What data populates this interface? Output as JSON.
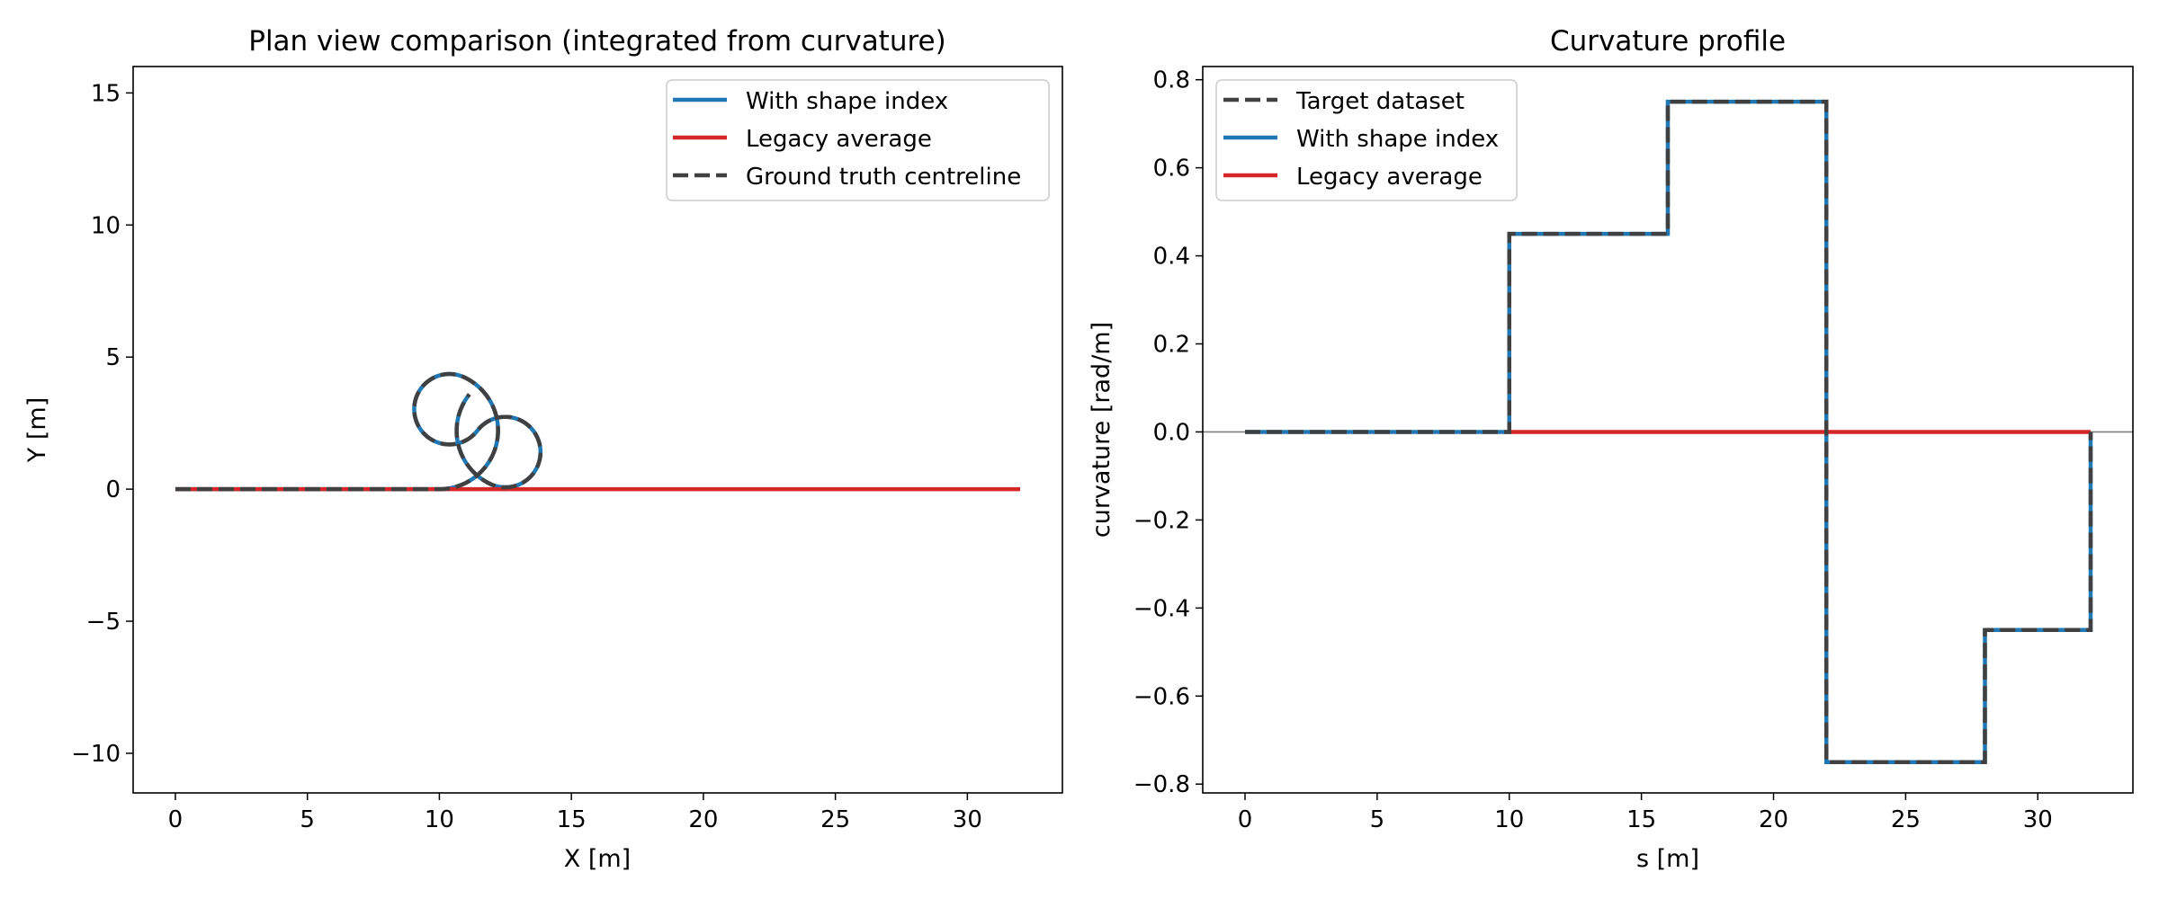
{
  "chart_data": [
    {
      "type": "line",
      "title": "Plan view comparison (integrated from curvature)",
      "xlabel": "X [m]",
      "ylabel": "Y [m]",
      "xlim": [
        -1.6,
        33.6
      ],
      "ylim": [
        -11.5,
        16.0
      ],
      "xticks": [
        0,
        5,
        10,
        15,
        20,
        25,
        30
      ],
      "yticks": [
        -10,
        -5,
        0,
        5,
        10,
        15
      ],
      "grid": false,
      "legend_position": "top-right",
      "curvature_segments": [
        {
          "s_start": 0,
          "s_end": 10,
          "k": 0.0
        },
        {
          "s_start": 10,
          "s_end": 16,
          "k": 0.45
        },
        {
          "s_start": 16,
          "s_end": 22,
          "k": 0.75
        },
        {
          "s_start": 22,
          "s_end": 28,
          "k": -0.75
        },
        {
          "s_start": 28,
          "s_end": 32,
          "k": -0.45
        }
      ],
      "series": [
        {
          "name": "With shape index",
          "color": "#1f77b4",
          "style": "solid",
          "path": "integrated",
          "end_point": [
            10.9,
            4.4
          ]
        },
        {
          "name": "Legacy average",
          "color": "#d62728",
          "style": "solid",
          "path": "straight",
          "x": [
            0,
            32
          ],
          "y": [
            0,
            0
          ]
        },
        {
          "name": "Ground truth centreline",
          "color": "#404040",
          "style": "dashed",
          "path": "integrated",
          "end_point": [
            10.9,
            4.4
          ]
        }
      ]
    },
    {
      "type": "line",
      "title": "Curvature profile",
      "xlabel": "s [m]",
      "ylabel": "curvature [rad/m]",
      "xlim": [
        -1.6,
        33.6
      ],
      "ylim": [
        -0.82,
        0.83
      ],
      "xticks": [
        0,
        5,
        10,
        15,
        20,
        25,
        30
      ],
      "yticks": [
        -0.8,
        -0.6,
        -0.4,
        -0.2,
        0.0,
        0.2,
        0.4,
        0.6,
        0.8
      ],
      "grid": false,
      "zero_line": true,
      "legend_position": "top-left",
      "series": [
        {
          "name": "Target dataset",
          "color": "#404040",
          "style": "dashed",
          "x": [
            0,
            10,
            10,
            16,
            16,
            22,
            22,
            28,
            28,
            32,
            32
          ],
          "y": [
            0,
            0,
            0.45,
            0.45,
            0.75,
            0.75,
            -0.75,
            -0.75,
            -0.45,
            -0.45,
            0
          ]
        },
        {
          "name": "With shape index",
          "color": "#1f77b4",
          "style": "solid",
          "x": [
            0,
            10,
            10,
            16,
            16,
            22,
            22,
            28,
            28,
            32,
            32
          ],
          "y": [
            0,
            0,
            0.45,
            0.45,
            0.75,
            0.75,
            -0.75,
            -0.75,
            -0.45,
            -0.45,
            0
          ]
        },
        {
          "name": "Legacy average",
          "color": "#d62728",
          "style": "solid",
          "x": [
            10,
            32
          ],
          "y": [
            0,
            0
          ]
        }
      ]
    }
  ]
}
